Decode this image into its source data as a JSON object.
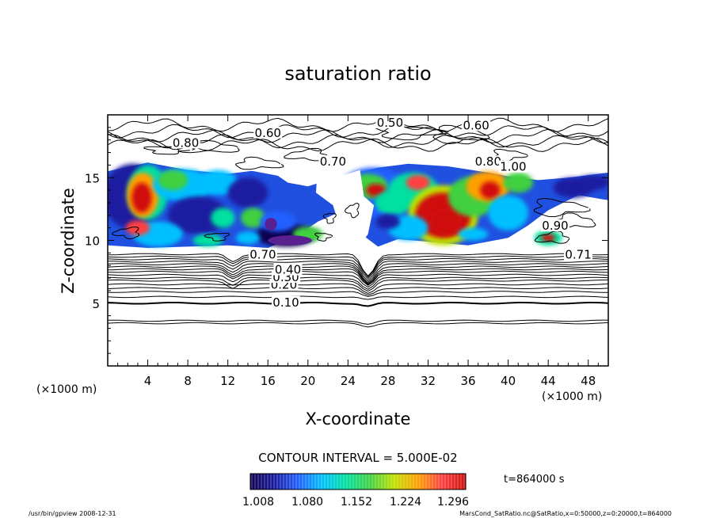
{
  "chart_data": {
    "type": "heatmap",
    "title": "saturation ratio",
    "xlabel": "X-coordinate",
    "ylabel": "Z-coordinate",
    "x_unit": "(×1000 m)",
    "y_unit": "(×1000 m)",
    "xlim": [
      0,
      50
    ],
    "ylim": [
      0,
      20
    ],
    "x_ticks": [
      4,
      8,
      12,
      16,
      20,
      24,
      28,
      32,
      36,
      40,
      44,
      48
    ],
    "y_ticks": [
      5,
      10,
      15
    ],
    "contour_interval_label": "CONTOUR INTERVAL = 5.000E-02",
    "time_label": "t=864000 s",
    "colorbar": {
      "ticks": [
        "1.008",
        "1.080",
        "1.152",
        "1.224",
        "1.296"
      ],
      "range": [
        1.008,
        1.296
      ],
      "colors": [
        "#100050",
        "#1a1aa0",
        "#2060ff",
        "#00c0ff",
        "#00e0a0",
        "#40d040",
        "#c0e000",
        "#ffa000",
        "#ff4040",
        "#d01010"
      ]
    },
    "contour_labels": [
      {
        "text": "0.10",
        "x": 17.8,
        "z": 5.0
      },
      {
        "text": "0.20",
        "x": 17.6,
        "z": 6.4
      },
      {
        "text": "0.30",
        "x": 17.8,
        "z": 7.0
      },
      {
        "text": "0.40",
        "x": 18.0,
        "z": 7.6
      },
      {
        "text": "0.70",
        "x": 15.5,
        "z": 8.8
      },
      {
        "text": "0.71",
        "x": 47.0,
        "z": 8.8
      },
      {
        "text": "0.80",
        "x": 7.8,
        "z": 17.7
      },
      {
        "text": "0.60",
        "x": 16.0,
        "z": 18.5
      },
      {
        "text": "0.50",
        "x": 28.2,
        "z": 19.3
      },
      {
        "text": "0.60",
        "x": 36.8,
        "z": 19.1
      },
      {
        "text": "0.70",
        "x": 22.5,
        "z": 16.2
      },
      {
        "text": "0.80",
        "x": 38.0,
        "z": 16.2
      },
      {
        "text": "1.00",
        "x": 40.5,
        "z": 15.8
      },
      {
        "text": "0.90",
        "x": 44.7,
        "z": 11.1
      }
    ],
    "field_regions": [
      {
        "x": 3.5,
        "z": 13.5,
        "value": 1.22
      },
      {
        "x": 8.0,
        "z": 14.6,
        "value": 1.1
      },
      {
        "x": 17.8,
        "z": 10.4,
        "value": 1.03
      },
      {
        "x": 26.5,
        "z": 14.2,
        "value": 1.22
      },
      {
        "x": 33.5,
        "z": 12.0,
        "value": 1.28
      },
      {
        "x": 38.5,
        "z": 14.3,
        "value": 1.2
      },
      {
        "x": 44.0,
        "z": 10.2,
        "value": 1.15
      }
    ]
  },
  "footer": {
    "left": "/usr/bin/gpview   2008-12-31",
    "right": "MarsCond_SatRatio.nc@SatRatio,x=0:50000,z=0:20000,t=864000"
  }
}
